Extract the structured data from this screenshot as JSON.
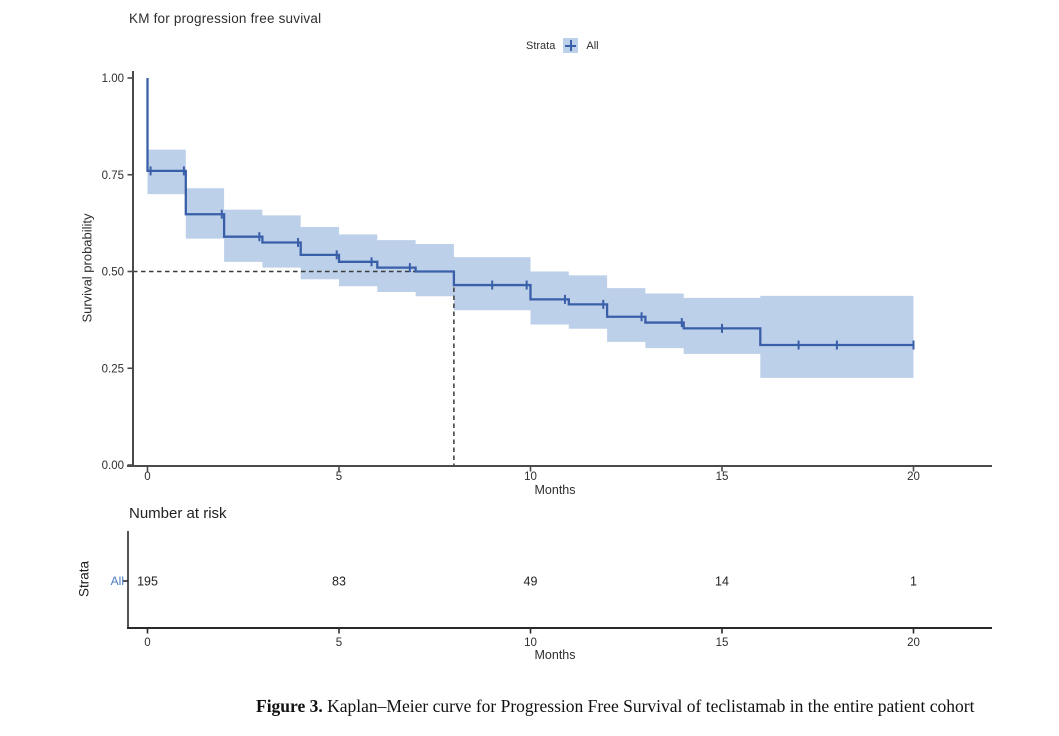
{
  "chart_data": {
    "type": "line",
    "subtype": "kaplan-meier-step",
    "title": "KM for progression free suvival",
    "xlabel": "Months",
    "ylabel": "Survival probability",
    "xlim": [
      0,
      22
    ],
    "ylim": [
      0.0,
      1.0
    ],
    "x_ticks": [
      0,
      5,
      10,
      15,
      20
    ],
    "y_ticks": [
      0.0,
      0.25,
      0.5,
      0.75,
      1.0
    ],
    "y_tick_labels": [
      "0.00",
      "0.25",
      "0.50",
      "0.75",
      "1.00"
    ],
    "grid": false,
    "legend": {
      "title": "Strata",
      "entries": [
        "All"
      ],
      "position": "top-center"
    },
    "median_annotation": {
      "time_months": 8,
      "survival": 0.5,
      "style": "dashed"
    },
    "series": [
      {
        "name": "All",
        "start": {
          "t": 0,
          "s": 1.0
        },
        "steps": [
          {
            "t_start": 0,
            "t_end": 1,
            "s": 0.76,
            "ci_low": 0.7,
            "ci_high": 0.815
          },
          {
            "t_start": 1,
            "t_end": 2,
            "s": 0.648,
            "ci_low": 0.585,
            "ci_high": 0.715
          },
          {
            "t_start": 2,
            "t_end": 3,
            "s": 0.59,
            "ci_low": 0.525,
            "ci_high": 0.66
          },
          {
            "t_start": 3,
            "t_end": 4,
            "s": 0.575,
            "ci_low": 0.51,
            "ci_high": 0.645
          },
          {
            "t_start": 4,
            "t_end": 5,
            "s": 0.543,
            "ci_low": 0.48,
            "ci_high": 0.615
          },
          {
            "t_start": 5,
            "t_end": 6,
            "s": 0.525,
            "ci_low": 0.462,
            "ci_high": 0.596
          },
          {
            "t_start": 6,
            "t_end": 7,
            "s": 0.51,
            "ci_low": 0.447,
            "ci_high": 0.581
          },
          {
            "t_start": 7,
            "t_end": 8,
            "s": 0.5,
            "ci_low": 0.436,
            "ci_high": 0.571
          },
          {
            "t_start": 8,
            "t_end": 10,
            "s": 0.465,
            "ci_low": 0.4,
            "ci_high": 0.537
          },
          {
            "t_start": 10,
            "t_end": 11,
            "s": 0.428,
            "ci_low": 0.363,
            "ci_high": 0.5
          },
          {
            "t_start": 11,
            "t_end": 12,
            "s": 0.415,
            "ci_low": 0.352,
            "ci_high": 0.49
          },
          {
            "t_start": 12,
            "t_end": 13,
            "s": 0.383,
            "ci_low": 0.318,
            "ci_high": 0.457
          },
          {
            "t_start": 13,
            "t_end": 14,
            "s": 0.368,
            "ci_low": 0.302,
            "ci_high": 0.443
          },
          {
            "t_start": 14,
            "t_end": 16,
            "s": 0.353,
            "ci_low": 0.287,
            "ci_high": 0.432
          },
          {
            "t_start": 16,
            "t_end": 20,
            "s": 0.31,
            "ci_low": 0.225,
            "ci_high": 0.437
          }
        ],
        "censor_marks": [
          {
            "t": 0.08,
            "s": 0.76
          },
          {
            "t": 0.95,
            "s": 0.76
          },
          {
            "t": 1.94,
            "s": 0.648
          },
          {
            "t": 2.92,
            "s": 0.59
          },
          {
            "t": 3.93,
            "s": 0.575
          },
          {
            "t": 4.94,
            "s": 0.543
          },
          {
            "t": 5.85,
            "s": 0.525
          },
          {
            "t": 6.85,
            "s": 0.51
          },
          {
            "t": 9.0,
            "s": 0.465
          },
          {
            "t": 9.9,
            "s": 0.465
          },
          {
            "t": 10.9,
            "s": 0.428
          },
          {
            "t": 11.9,
            "s": 0.415
          },
          {
            "t": 12.9,
            "s": 0.383
          },
          {
            "t": 13.95,
            "s": 0.368
          },
          {
            "t": 15.0,
            "s": 0.353
          },
          {
            "t": 17.0,
            "s": 0.31
          },
          {
            "t": 18.0,
            "s": 0.31
          },
          {
            "t": 20.0,
            "s": 0.31
          }
        ]
      }
    ],
    "risk_table": {
      "title": "Number at risk",
      "axis_label": "Strata",
      "xlabel": "Months",
      "x_ticks": [
        0,
        5,
        10,
        15,
        20
      ],
      "rows": [
        {
          "label": "All",
          "times": [
            0,
            5,
            10,
            15,
            20
          ],
          "counts": [
            195,
            83,
            49,
            14,
            1
          ]
        }
      ]
    },
    "colors": {
      "curve": "#3a5fa9",
      "band": "#bdd0ea",
      "dashed": "#3b3b3b",
      "axis": "#4a4a4a",
      "axis_dark": "#2a2a2a",
      "text": "#2e2e2e",
      "strata_blue": "#4a7abc"
    }
  },
  "caption": {
    "label": "Figure 3.",
    "text": " Kaplan–Meier curve for Progression Free Survival of teclistamab in the entire patient cohort"
  }
}
